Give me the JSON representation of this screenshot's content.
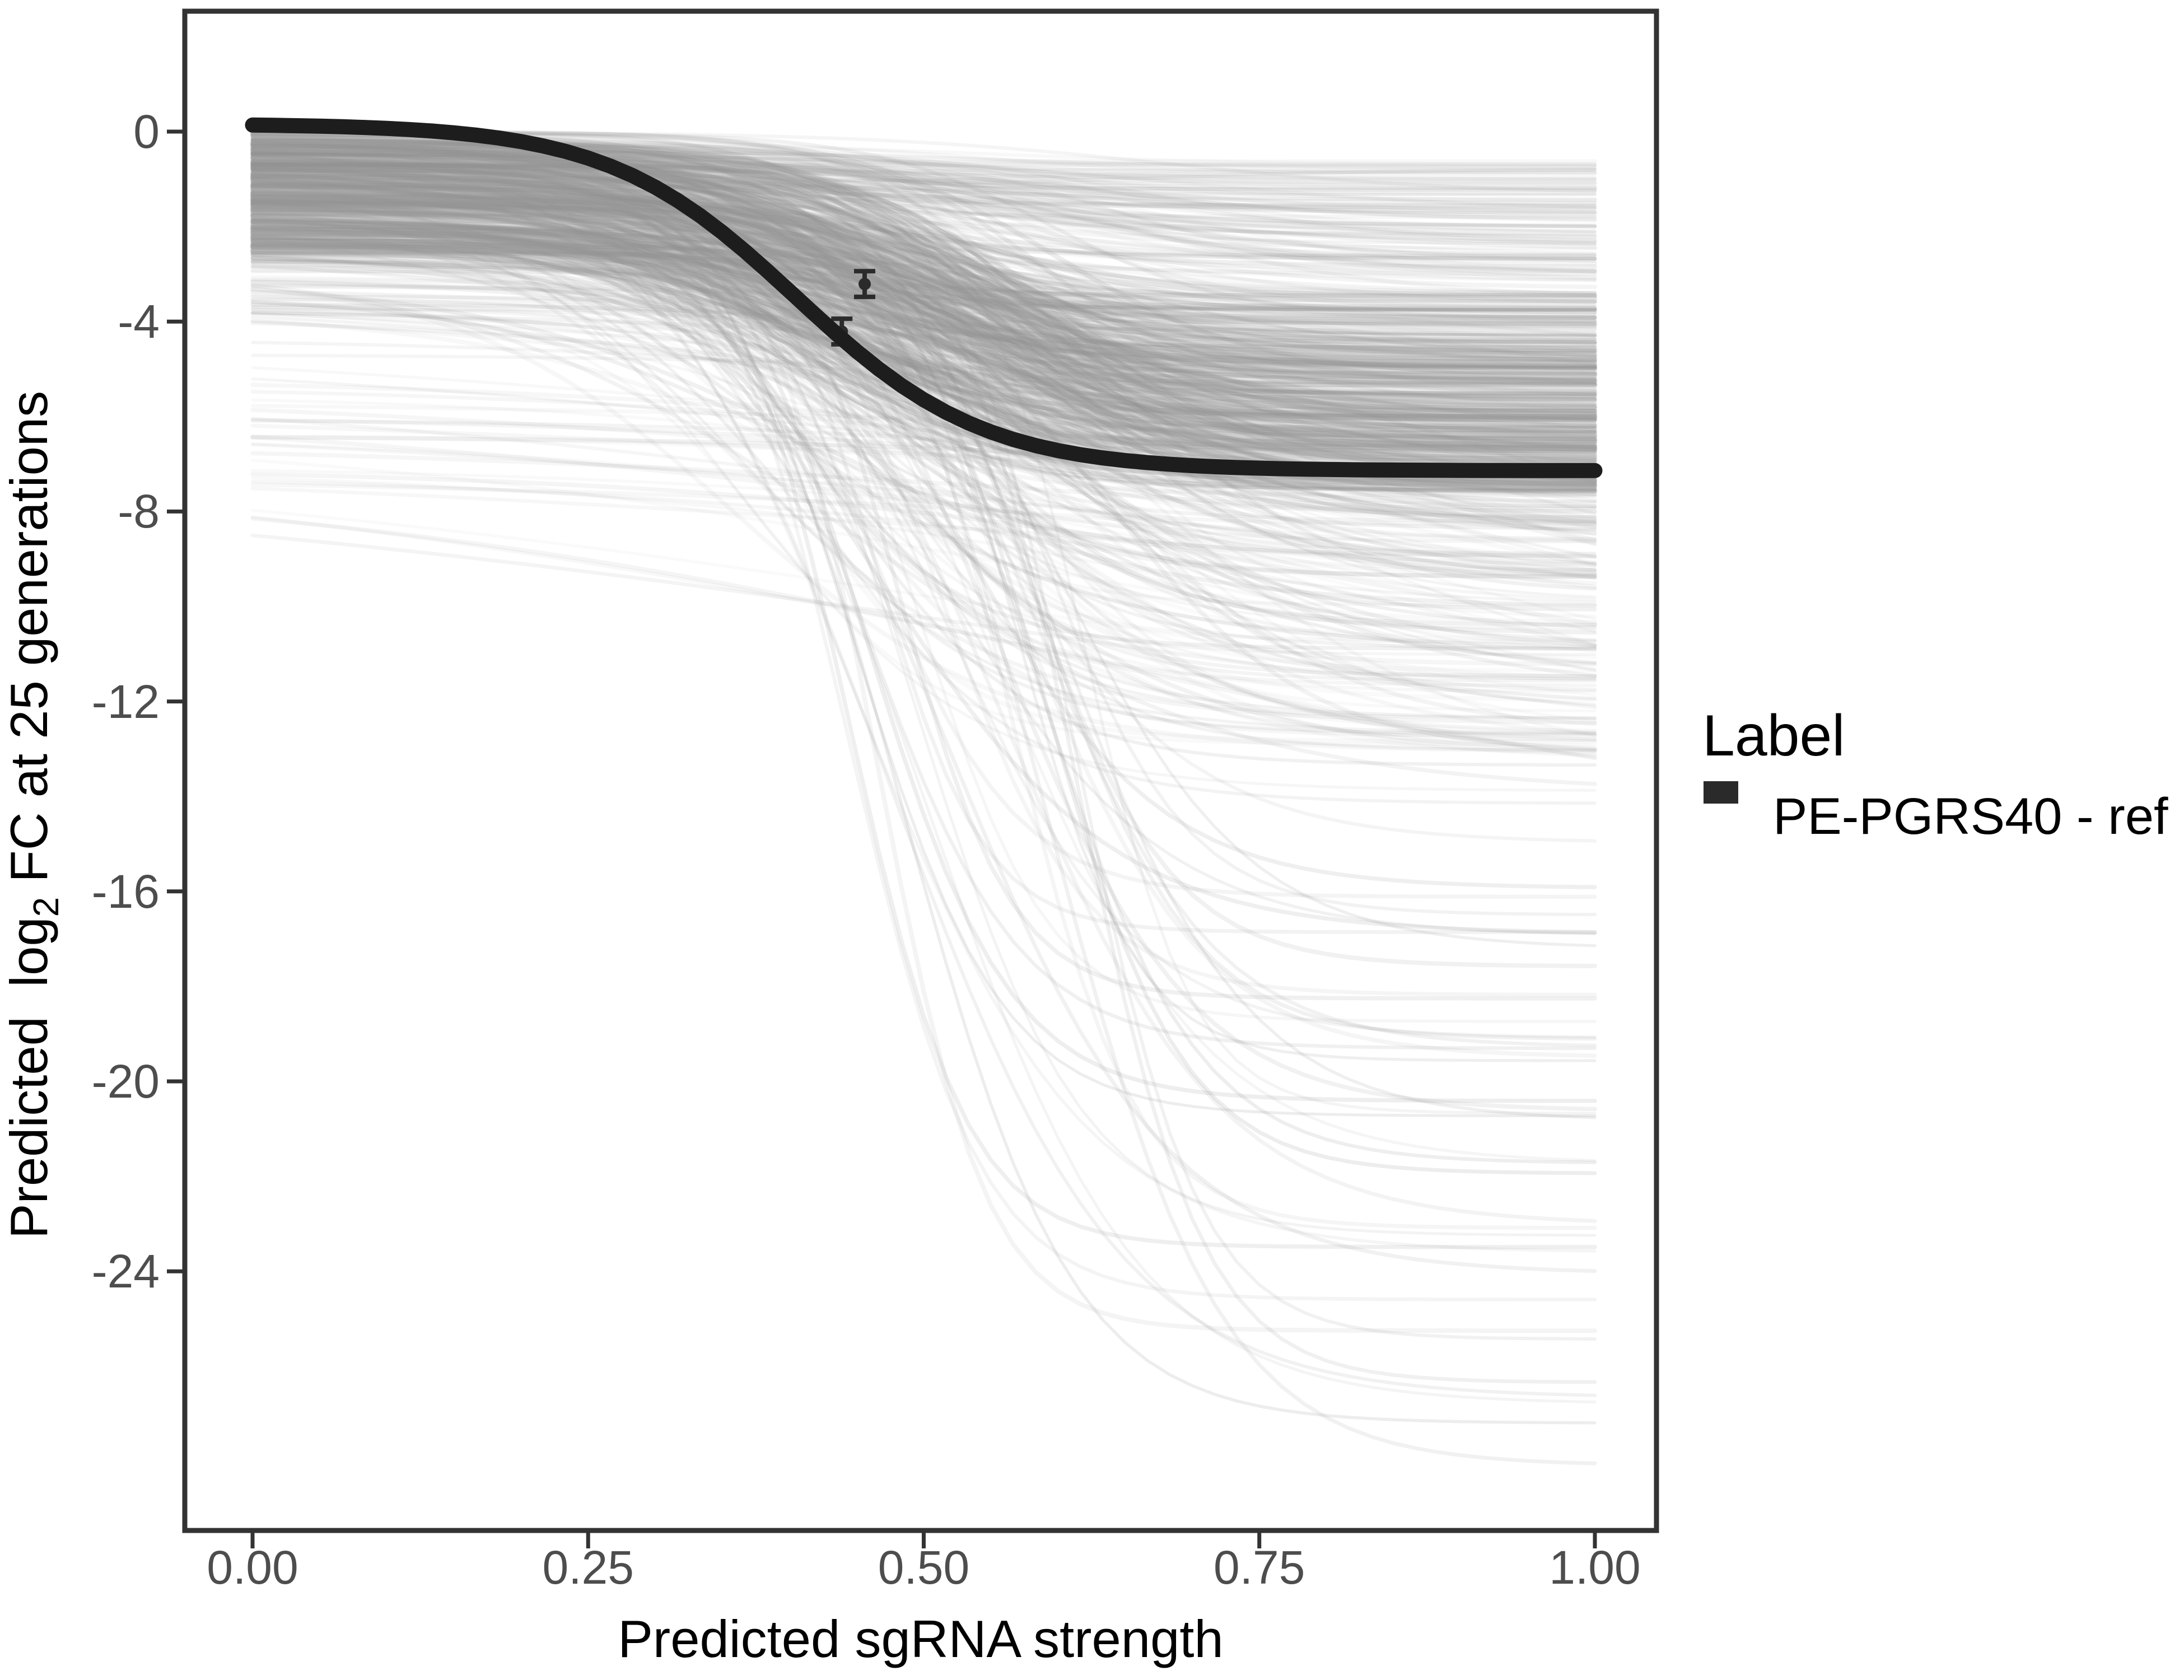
{
  "figure": {
    "background_color": "#ffffff",
    "axis": {
      "x_title": "Predicted sgRNA strength",
      "y_title": {
        "pre": "Predicted  log",
        "sub": "2",
        "post": " FC at 25 generations"
      },
      "x_ticks": [
        "0.00",
        "0.25",
        "0.50",
        "0.75",
        "1.00"
      ],
      "y_ticks": [
        "0",
        "-4",
        "-8",
        "-12",
        "-16",
        "-20",
        "-24"
      ],
      "tick_label_color": "#4d4d4d",
      "border_color": "#333333"
    },
    "legend": {
      "title": "Label",
      "items": [
        {
          "label": "PE-PGRS40 - ref",
          "swatch_color": "#2a2a2a"
        }
      ]
    }
  },
  "chart_data": {
    "type": "line",
    "title": "",
    "xlabel": "Predicted sgRNA strength",
    "ylabel": "Predicted log2 FC at 25 generations",
    "xlim": [
      -0.05,
      1.05
    ],
    "ylim": [
      -29.5,
      2.5
    ],
    "x_tick_values": [
      0,
      0.25,
      0.5,
      0.75,
      1.0
    ],
    "y_tick_values": [
      0,
      -4,
      -8,
      -12,
      -16,
      -20,
      -24
    ],
    "grid": false,
    "legend_position": "right",
    "series": [
      {
        "name": "PE-PGRS40 - ref",
        "role": "highlighted-fit",
        "color": "#1d1d1d",
        "model": "logistic",
        "params": {
          "top": 0.16,
          "bottom": -7.14,
          "midpoint": 0.405,
          "steepness": 14.3
        },
        "x_range": [
          0,
          1
        ],
        "stroke_width": 27
      }
    ],
    "points_with_error_bars": [
      {
        "x": 0.456,
        "y": -3.21,
        "y_err": 0.27
      },
      {
        "x": 0.439,
        "y": -4.21,
        "y_err": 0.27
      }
    ],
    "background_ensemble": {
      "description": "translucent gray logistic fit curves for all other sgRNAs, x from 0 to 1",
      "line_color_rgb": [
        150,
        150,
        150
      ],
      "seed": 7,
      "categories": [
        {
          "name": "dense-band",
          "count": 380,
          "top": [
            0,
            -2.6
          ],
          "bottom": [
            -3.4,
            -7.6
          ],
          "bottom_bias": 0.75,
          "midpoint": [
            0.36,
            0.6
          ],
          "steepness": [
            8,
            18
          ],
          "alpha": [
            0.07,
            0.2
          ],
          "width": [
            5,
            9
          ]
        },
        {
          "name": "upper-light",
          "count": 110,
          "top": [
            0,
            -1.2
          ],
          "bottom": [
            -0.6,
            -3.6
          ],
          "bottom_bias": 1.0,
          "midpoint": [
            0.3,
            0.7
          ],
          "steepness": [
            6,
            14
          ],
          "alpha": [
            0.05,
            0.12
          ],
          "width": [
            5,
            8
          ]
        },
        {
          "name": "mid-deep",
          "count": 120,
          "top": [
            0,
            -3.8
          ],
          "bottom": [
            -7.6,
            -14.2
          ],
          "bottom_bias": 1.3,
          "midpoint": [
            0.36,
            0.64
          ],
          "steepness": [
            7,
            16
          ],
          "alpha": [
            0.05,
            0.14
          ],
          "width": [
            5,
            8
          ]
        },
        {
          "name": "shallow-decline",
          "count": 50,
          "top": [
            -2.2,
            -7.4
          ],
          "bottom_offset": [
            -1.5,
            -10
          ],
          "midpoint": [
            0.55,
            1.1
          ],
          "steepness": [
            2.2,
            5.2
          ],
          "alpha": [
            0.05,
            0.11
          ],
          "width": [
            5,
            8
          ]
        },
        {
          "name": "deep-outlier",
          "count": 40,
          "top": [
            -0.3,
            -1.8
          ],
          "bottom": [
            -14.5,
            -28.3
          ],
          "bottom_bias": 1.0,
          "midpoint": [
            0.44,
            0.62
          ],
          "steepness": [
            11,
            25
          ],
          "alpha": [
            0.09,
            0.18
          ],
          "width": [
            5,
            8
          ]
        }
      ]
    }
  }
}
